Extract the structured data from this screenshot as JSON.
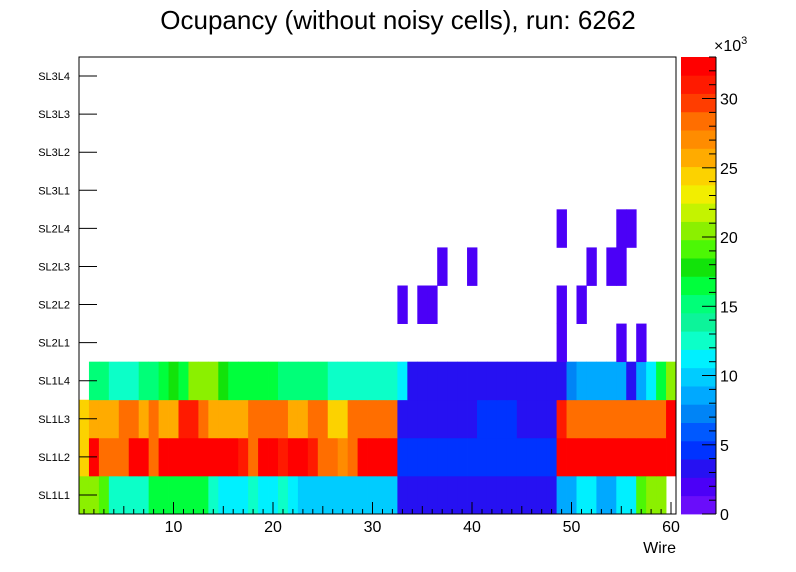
{
  "chart_data": {
    "type": "heatmap",
    "title": "Ocupancy (without noisy cells), run: 6262",
    "xlabel": "Wire",
    "ylabel": "",
    "xlim": [
      0.5,
      60.5
    ],
    "x_ticks": [
      10,
      20,
      30,
      40,
      50,
      60
    ],
    "x_tick_labels": [
      "10",
      "20",
      "30",
      "40",
      "50",
      "60"
    ],
    "y_labels": [
      "SL1L1",
      "SL1L2",
      "SL1L3",
      "SL1L4",
      "SL2L1",
      "SL2L2",
      "SL2L3",
      "SL2L4",
      "SL3L1",
      "SL3L2",
      "SL3L3",
      "SL3L4"
    ],
    "z_range": [
      0,
      33000
    ],
    "z_ticks": [
      0,
      5,
      10,
      15,
      20,
      25,
      30
    ],
    "z_tick_labels": [
      "0",
      "5",
      "10",
      "15",
      "20",
      "25",
      "30"
    ],
    "z_multiplier": "×10",
    "z_exponent": "3",
    "cells": {
      "SL1L1": [
        20000,
        20000,
        19000,
        13000,
        13000,
        13000,
        13000,
        17000,
        17000,
        17000,
        17000,
        17000,
        16000,
        13000,
        11000,
        11000,
        11000,
        12000,
        11000,
        11000,
        12000,
        11000,
        9500,
        9500,
        9500,
        9500,
        9500,
        9500,
        9500,
        9500,
        9500,
        9500,
        3000,
        3000,
        3000,
        3000,
        3000,
        3000,
        3000,
        3000,
        3000,
        3000,
        3000,
        3000,
        3000,
        3000,
        3000,
        3000,
        9000,
        9000,
        11000,
        11000,
        9000,
        9000,
        11000,
        11000,
        19000,
        20000,
        21000,
        null
      ],
      "SL1L2": [
        24000,
        32000,
        29000,
        29000,
        29000,
        32000,
        32000,
        29000,
        33000,
        33000,
        32000,
        33000,
        33000,
        33000,
        33000,
        33000,
        31000,
        29000,
        33000,
        33000,
        31000,
        33000,
        33000,
        31000,
        29000,
        29000,
        27000,
        28000,
        33000,
        33000,
        33000,
        33000,
        5000,
        5000,
        5000,
        5000,
        4000,
        4000,
        5000,
        5000,
        5000,
        5000,
        5000,
        5000,
        5000,
        5000,
        5000,
        5000,
        33000,
        33000,
        33000,
        33000,
        33000,
        33000,
        33000,
        33000,
        33000,
        33000,
        33000,
        33000
      ],
      "SL1L3": [
        24000,
        26000,
        26000,
        26000,
        29000,
        29000,
        26000,
        29000,
        26000,
        26000,
        31000,
        31000,
        29000,
        26000,
        26000,
        26000,
        26000,
        28000,
        28000,
        28000,
        28000,
        26000,
        26000,
        28000,
        28000,
        24000,
        24000,
        28000,
        28000,
        28000,
        28000,
        28000,
        3500,
        3500,
        3500,
        3500,
        3500,
        3500,
        3500,
        3500,
        4500,
        4500,
        4500,
        4500,
        3500,
        3500,
        3500,
        3500,
        31000,
        28000,
        28000,
        28000,
        28000,
        28000,
        28000,
        28000,
        28000,
        28000,
        28000,
        32000
      ],
      "SL1L4": [
        null,
        15000,
        15000,
        13000,
        13000,
        13000,
        15000,
        15000,
        17000,
        18000,
        17000,
        20000,
        20000,
        20000,
        18000,
        17000,
        17000,
        17000,
        16000,
        16000,
        15000,
        15000,
        15000,
        15000,
        15000,
        13000,
        13000,
        13000,
        13000,
        13000,
        13000,
        13000,
        11000,
        3000,
        3000,
        3000,
        3000,
        3000,
        3000,
        3000,
        3000,
        3000,
        3000,
        3000,
        3000,
        3000,
        3000,
        3000,
        3000,
        7000,
        8000,
        8000,
        8000,
        8000,
        8000,
        3000,
        8000,
        11000,
        17000,
        20000
      ],
      "SL2L1": [
        null,
        null,
        null,
        null,
        null,
        null,
        null,
        null,
        null,
        null,
        null,
        null,
        null,
        null,
        null,
        null,
        null,
        null,
        null,
        null,
        null,
        null,
        null,
        null,
        null,
        null,
        null,
        null,
        null,
        null,
        null,
        null,
        null,
        null,
        null,
        null,
        null,
        null,
        null,
        null,
        null,
        null,
        null,
        null,
        null,
        null,
        null,
        null,
        2000,
        null,
        null,
        null,
        null,
        null,
        2000,
        null,
        2000,
        null,
        null,
        null
      ],
      "SL2L2": [
        null,
        null,
        null,
        null,
        null,
        null,
        null,
        null,
        null,
        null,
        null,
        null,
        null,
        null,
        null,
        null,
        null,
        null,
        null,
        null,
        null,
        null,
        null,
        null,
        null,
        null,
        null,
        null,
        null,
        null,
        null,
        null,
        2000,
        null,
        2000,
        2000,
        null,
        null,
        null,
        null,
        null,
        null,
        null,
        null,
        null,
        null,
        null,
        null,
        2000,
        null,
        2000,
        null,
        null,
        null,
        null,
        null,
        null,
        null,
        null,
        null
      ],
      "SL2L3": [
        null,
        null,
        null,
        null,
        null,
        null,
        null,
        null,
        null,
        null,
        null,
        null,
        null,
        null,
        null,
        null,
        null,
        null,
        null,
        null,
        null,
        null,
        null,
        null,
        null,
        null,
        null,
        null,
        null,
        null,
        null,
        null,
        null,
        null,
        null,
        null,
        2000,
        null,
        null,
        2000,
        null,
        null,
        null,
        null,
        null,
        null,
        null,
        null,
        null,
        null,
        null,
        2000,
        null,
        2000,
        2000,
        null,
        null,
        null,
        null,
        null
      ],
      "SL2L4": [
        null,
        null,
        null,
        null,
        null,
        null,
        null,
        null,
        null,
        null,
        null,
        null,
        null,
        null,
        null,
        null,
        null,
        null,
        null,
        null,
        null,
        null,
        null,
        null,
        null,
        null,
        null,
        null,
        null,
        null,
        null,
        null,
        null,
        null,
        null,
        null,
        null,
        null,
        null,
        null,
        null,
        null,
        null,
        null,
        null,
        null,
        null,
        null,
        2000,
        null,
        null,
        null,
        null,
        null,
        2000,
        2000,
        null,
        null,
        null,
        null
      ],
      "SL3L1": [],
      "SL3L2": [],
      "SL3L3": [],
      "SL3L4": []
    },
    "palette": [
      "#6a0dfa",
      "#4b00f7",
      "#2611f2",
      "#0033ff",
      "#0059ff",
      "#0084f6",
      "#00a9ff",
      "#00ccff",
      "#00f0ff",
      "#0cffc8",
      "#0cf49a",
      "#00ff78",
      "#00ff3c",
      "#12e30a",
      "#4cf705",
      "#8bf000",
      "#c4f300",
      "#f2ee00",
      "#fcd200",
      "#ffab00",
      "#ff8c00",
      "#ff6e00",
      "#ff3d00",
      "#ff1a00",
      "#ff0000"
    ]
  }
}
